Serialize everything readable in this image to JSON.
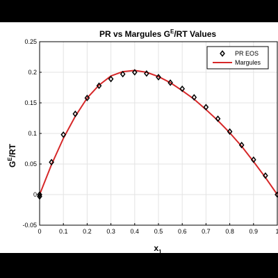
{
  "chart_data": {
    "type": "line",
    "title": "PR vs Margules G",
    "title_sup": "E",
    "title_tail": "/RT Values",
    "ylabel": "G",
    "ylabel_sup": "E",
    "ylabel_tail": "/RT",
    "xlabel": "x",
    "xlabel_sub": "1",
    "xlim": [
      0,
      1
    ],
    "ylim": [
      -0.05,
      0.25
    ],
    "xticks": [
      0,
      0.1,
      0.2,
      0.3,
      0.4,
      0.5,
      0.6,
      0.7,
      0.8,
      0.9,
      1
    ],
    "xtick_labels": [
      "0",
      "0.1",
      "0.2",
      "0.3",
      "0.4",
      "0.5",
      "0.6",
      "0.7",
      "0.8",
      "0.9",
      "1"
    ],
    "yticks": [
      -0.05,
      0,
      0.05,
      0.1,
      0.15,
      0.2,
      0.25
    ],
    "ytick_labels": [
      "-0.05",
      "0",
      "0.05",
      "0.1",
      "0.15",
      "0.2",
      "0.25"
    ],
    "grid": true,
    "legend_position": "top-right",
    "series": [
      {
        "name": "PR EOS",
        "style": "markers",
        "marker": "diamond",
        "color": "#000000",
        "x": [
          0,
          0,
          0.05,
          0.1,
          0.15,
          0.2,
          0.25,
          0.3,
          0.35,
          0.4,
          0.45,
          0.5,
          0.55,
          0.6,
          0.65,
          0.7,
          0.75,
          0.8,
          0.85,
          0.9,
          0.95,
          1
        ],
        "y": [
          -0.003,
          0,
          0.053,
          0.098,
          0.132,
          0.158,
          0.178,
          0.189,
          0.197,
          0.2,
          0.198,
          0.192,
          0.183,
          0.173,
          0.159,
          0.143,
          0.124,
          0.103,
          0.081,
          0.057,
          0.031,
          0
        ]
      },
      {
        "name": "Margules",
        "style": "line",
        "color": "#d62728",
        "x": [
          0,
          0.05,
          0.1,
          0.15,
          0.2,
          0.25,
          0.3,
          0.35,
          0.4,
          0.45,
          0.5,
          0.55,
          0.6,
          0.65,
          0.7,
          0.75,
          0.8,
          0.85,
          0.9,
          0.95,
          1
        ],
        "y": [
          0,
          0.049,
          0.092,
          0.128,
          0.158,
          0.179,
          0.194,
          0.201,
          0.203,
          0.2,
          0.193,
          0.183,
          0.17,
          0.156,
          0.139,
          0.121,
          0.101,
          0.079,
          0.054,
          0.028,
          0
        ]
      }
    ]
  }
}
